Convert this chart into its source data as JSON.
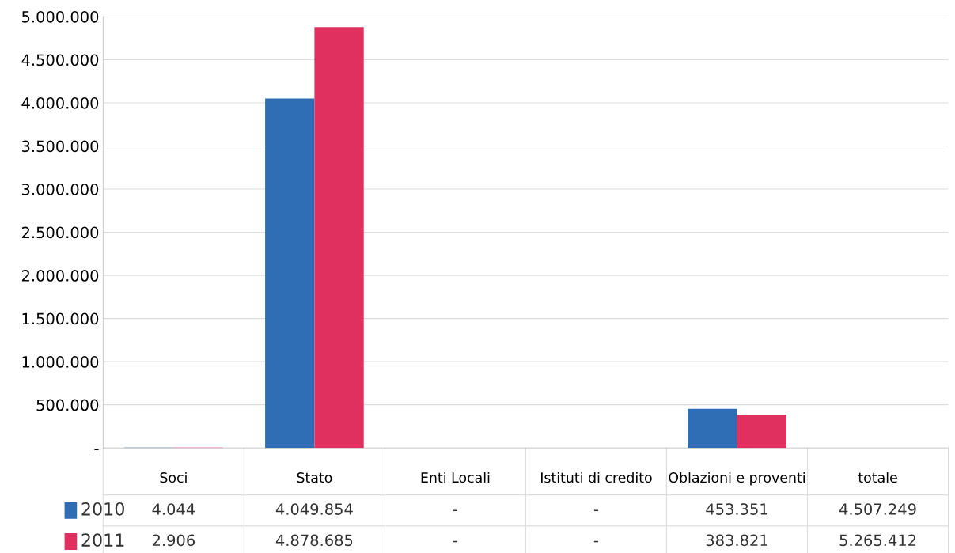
{
  "chart_data": {
    "type": "bar",
    "categories": [
      "Soci",
      "Stato",
      "Enti Locali",
      "Istituti di credito",
      "Oblazioni e proventi",
      "totale"
    ],
    "series": [
      {
        "name": "2010",
        "color": "#2f6db5",
        "values": [
          4044,
          4049854,
          0,
          0,
          453351,
          null
        ],
        "value_labels": [
          "4.044",
          "4.049.854",
          "-",
          "-",
          "453.351",
          "4.507.249"
        ]
      },
      {
        "name": "2011",
        "color": "#e0305f",
        "values": [
          2906,
          4878685,
          0,
          0,
          383821,
          null
        ],
        "value_labels": [
          "2.906",
          "4.878.685",
          "-",
          "-",
          "383.821",
          "5.265.412"
        ]
      }
    ],
    "ylim": [
      0,
      5000000
    ],
    "yticks": [
      {
        "value": 0,
        "label": "-"
      },
      {
        "value": 500000,
        "label": "500.000"
      },
      {
        "value": 1000000,
        "label": "1.000.000"
      },
      {
        "value": 1500000,
        "label": "1.500.000"
      },
      {
        "value": 2000000,
        "label": "2.000.000"
      },
      {
        "value": 2500000,
        "label": "2.500.000"
      },
      {
        "value": 3000000,
        "label": "3.000.000"
      },
      {
        "value": 3500000,
        "label": "3.500.000"
      },
      {
        "value": 4000000,
        "label": "4.000.000"
      },
      {
        "value": 4500000,
        "label": "4.500.000"
      },
      {
        "value": 5000000,
        "label": "5.000.000"
      }
    ],
    "grid": "y",
    "legend": "bottom left"
  }
}
